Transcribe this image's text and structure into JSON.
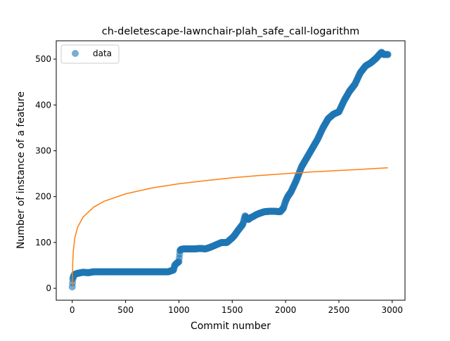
{
  "chart_data": {
    "type": "scatter",
    "title": "ch-deletescape-lawnchair-plah_safe_call-logarithm",
    "xlabel": "Commit number",
    "ylabel": "Number of instance of a feature",
    "xlim": [
      -150,
      3120
    ],
    "ylim": [
      -26,
      540
    ],
    "x_ticks": [
      0,
      500,
      1000,
      1500,
      2000,
      2500,
      3000
    ],
    "y_ticks": [
      0,
      100,
      200,
      300,
      400,
      500
    ],
    "x_tick_labels": [
      "0",
      "500",
      "1000",
      "1500",
      "2000",
      "2500",
      "3000"
    ],
    "y_tick_labels": [
      "0",
      "100",
      "200",
      "300",
      "400",
      "500"
    ],
    "grid": false,
    "legend": {
      "position": "top-left",
      "entries": [
        "data"
      ]
    },
    "colors": {
      "data": "#1f77b4",
      "fit": "#ff7f0e"
    },
    "series": [
      {
        "name": "data",
        "kind": "scatter",
        "x": [
          0,
          5,
          10,
          20,
          40,
          60,
          80,
          100,
          150,
          200,
          250,
          300,
          350,
          400,
          450,
          500,
          550,
          600,
          650,
          700,
          750,
          800,
          850,
          900,
          950,
          960,
          980,
          1000,
          1010,
          1020,
          1050,
          1100,
          1150,
          1200,
          1250,
          1300,
          1350,
          1400,
          1450,
          1500,
          1520,
          1550,
          1600,
          1620,
          1650,
          1680,
          1700,
          1720,
          1750,
          1800,
          1850,
          1900,
          1950,
          1980,
          2000,
          2020,
          2050,
          2100,
          2150,
          2200,
          2250,
          2300,
          2350,
          2400,
          2450,
          2500,
          2550,
          2600,
          2650,
          2700,
          2750,
          2800,
          2850,
          2880,
          2900,
          2920,
          2940,
          2960
        ],
        "y": [
          3,
          20,
          25,
          30,
          32,
          33,
          34,
          35,
          34,
          36,
          36,
          36,
          36,
          36,
          36,
          36,
          36,
          36,
          36,
          36,
          36,
          36,
          36,
          36,
          40,
          50,
          55,
          58,
          82,
          85,
          86,
          86,
          86,
          87,
          86,
          90,
          95,
          100,
          100,
          110,
          115,
          125,
          140,
          158,
          150,
          155,
          157,
          160,
          163,
          167,
          168,
          168,
          167,
          175,
          190,
          200,
          210,
          235,
          265,
          285,
          305,
          325,
          350,
          370,
          380,
          385,
          410,
          430,
          445,
          470,
          485,
          492,
          502,
          510,
          515,
          510,
          510,
          510
        ]
      },
      {
        "kind": "line",
        "x": [
          1,
          5,
          10,
          25,
          50,
          100,
          200,
          300,
          500,
          750,
          1000,
          1250,
          1500,
          1750,
          2000,
          2250,
          2500,
          2750,
          2960
        ],
        "y": [
          5,
          59,
          82,
          111,
          133,
          155,
          177,
          190,
          206,
          219,
          228,
          235,
          241,
          246,
          250,
          254,
          257,
          260,
          263
        ]
      }
    ]
  }
}
